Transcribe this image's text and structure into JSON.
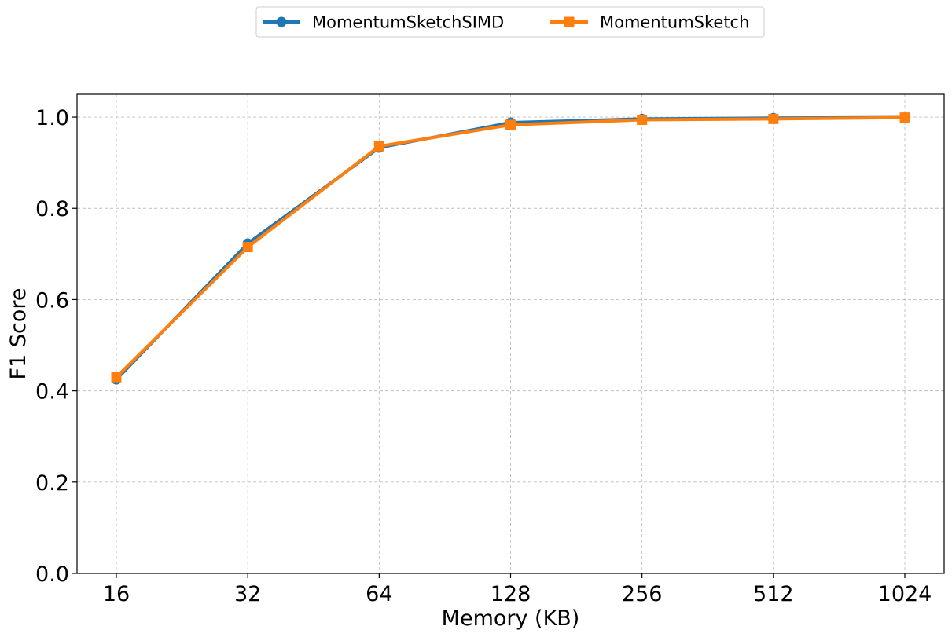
{
  "chart_data": {
    "type": "line",
    "title": "",
    "xlabel": "Memory (KB)",
    "ylabel": "F1 Score",
    "categories": [
      "16",
      "32",
      "64",
      "128",
      "256",
      "512",
      "1024"
    ],
    "ylim": [
      0.0,
      1.05
    ],
    "yticks": [
      "0.0",
      "0.2",
      "0.4",
      "0.6",
      "0.8",
      "1.0"
    ],
    "grid": true,
    "legend_position": "top-center",
    "series": [
      {
        "name": "MomentumSketchSIMD",
        "color": "#1f77b4",
        "marker": "circle",
        "values": [
          0.425,
          0.723,
          0.933,
          0.988,
          0.996,
          0.998,
          0.999
        ]
      },
      {
        "name": "MomentumSketch",
        "color": "#ff7f0e",
        "marker": "square",
        "values": [
          0.43,
          0.715,
          0.936,
          0.983,
          0.994,
          0.996,
          0.999
        ]
      }
    ]
  }
}
